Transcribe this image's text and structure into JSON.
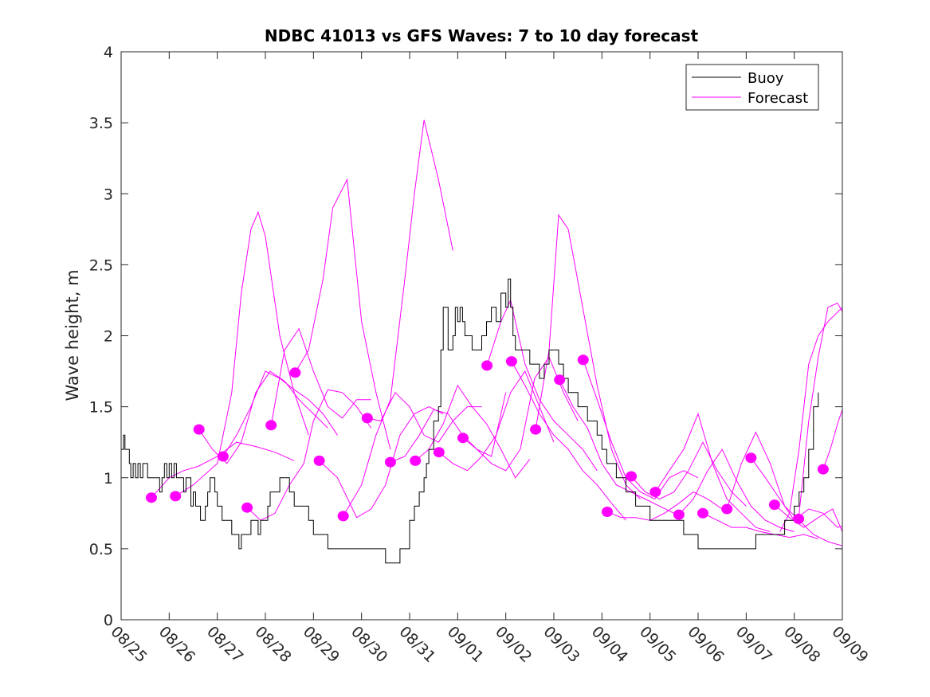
{
  "chart_data": {
    "type": "line",
    "title": "NDBC 41013 vs GFS Waves: 7 to 10 day forecast",
    "xlabel": "",
    "ylabel": "Wave height, m",
    "x_unit": "days since 08/25",
    "xlim": [
      0,
      15
    ],
    "ylim": [
      0,
      4
    ],
    "x_ticks": [
      0,
      1,
      2,
      3,
      4,
      5,
      6,
      7,
      8,
      9,
      10,
      11,
      12,
      13,
      14,
      15
    ],
    "x_tick_labels": [
      "08/25",
      "08/26",
      "08/27",
      "08/28",
      "08/29",
      "08/30",
      "08/31",
      "09/01",
      "09/02",
      "09/03",
      "09/04",
      "09/05",
      "09/06",
      "09/07",
      "09/08",
      "09/09"
    ],
    "y_ticks": [
      0,
      0.5,
      1,
      1.5,
      2,
      2.5,
      3,
      3.5,
      4
    ],
    "y_tick_labels": [
      "0",
      "0.5",
      "1",
      "1.5",
      "2",
      "2.5",
      "3",
      "3.5",
      "4"
    ],
    "grid": false,
    "legend": {
      "placement": "top-right",
      "entries": [
        {
          "label": "Buoy",
          "color": "#000000"
        },
        {
          "label": "Forecast",
          "color": "#ff00ff"
        }
      ]
    },
    "colors": {
      "buoy": "#000000",
      "forecast": "#ff00ff"
    },
    "buoy": {
      "name": "Buoy",
      "x": [
        0,
        0.05,
        0.08,
        0.12,
        0.17,
        0.2,
        0.25,
        0.3,
        0.35,
        0.4,
        0.45,
        0.5,
        0.55,
        0.6,
        0.65,
        0.7,
        0.75,
        0.8,
        0.85,
        0.9,
        0.95,
        1.0,
        1.05,
        1.1,
        1.15,
        1.2,
        1.25,
        1.3,
        1.35,
        1.4,
        1.45,
        1.5,
        1.55,
        1.6,
        1.65,
        1.7,
        1.75,
        1.8,
        1.85,
        1.9,
        1.95,
        2.0,
        2.1,
        2.2,
        2.3,
        2.4,
        2.45,
        2.5,
        2.55,
        2.6,
        2.7,
        2.8,
        2.85,
        2.9,
        3.0,
        3.05,
        3.1,
        3.15,
        3.2,
        3.3,
        3.4,
        3.5,
        3.6,
        3.7,
        3.8,
        3.9,
        4.0,
        4.05,
        4.1,
        4.15,
        4.2,
        4.3,
        4.4,
        4.5,
        4.6,
        4.7,
        5.0,
        5.2,
        5.5,
        5.8,
        6.0,
        6.1,
        6.15,
        6.2,
        6.25,
        6.3,
        6.35,
        6.4,
        6.5,
        6.6,
        6.65,
        6.7,
        6.8,
        6.9,
        6.95,
        7.0,
        7.05,
        7.1,
        7.15,
        7.2,
        7.3,
        7.4,
        7.5,
        7.6,
        7.7,
        7.8,
        7.9,
        8.0,
        8.05,
        8.1,
        8.15,
        8.2,
        8.3,
        8.4,
        8.5,
        8.6,
        8.7,
        8.8,
        8.9,
        9.0,
        9.1,
        9.2,
        9.3,
        9.4,
        9.5,
        9.6,
        9.7,
        9.8,
        9.9,
        10.0,
        10.1,
        10.2,
        10.3,
        10.4,
        10.5,
        10.6,
        10.7,
        10.8,
        10.9,
        11.0,
        11.2,
        11.4,
        11.6,
        11.7,
        11.8,
        11.9,
        12.0,
        12.2,
        12.4,
        12.6,
        12.8,
        13.0,
        13.2,
        13.4,
        13.6,
        13.8,
        13.9,
        14.0,
        14.1,
        14.2,
        14.3,
        14.4,
        14.5
      ],
      "y": [
        1.2,
        1.3,
        1.2,
        1.2,
        1.1,
        1.0,
        1.1,
        1.0,
        1.1,
        1.0,
        1.1,
        1.1,
        1.0,
        1.0,
        1.0,
        1.0,
        1.0,
        0.9,
        1.0,
        1.1,
        1.0,
        1.1,
        1.0,
        1.1,
        1.0,
        1.0,
        1.0,
        0.9,
        1.0,
        1.0,
        0.8,
        0.9,
        0.8,
        0.8,
        0.7,
        0.7,
        0.8,
        0.9,
        1.0,
        1.0,
        0.9,
        0.8,
        0.7,
        0.7,
        0.6,
        0.6,
        0.5,
        0.6,
        0.6,
        0.6,
        0.7,
        0.7,
        0.6,
        0.7,
        0.7,
        0.8,
        0.9,
        0.9,
        0.9,
        1.0,
        1.0,
        0.9,
        0.8,
        0.8,
        0.8,
        0.7,
        0.6,
        0.6,
        0.6,
        0.6,
        0.6,
        0.5,
        0.5,
        0.5,
        0.5,
        0.5,
        0.5,
        0.5,
        0.4,
        0.5,
        0.7,
        0.8,
        0.8,
        0.9,
        0.9,
        1.0,
        1.1,
        1.2,
        1.4,
        1.5,
        1.9,
        2.2,
        1.9,
        2.0,
        2.2,
        2.1,
        2.2,
        2.1,
        2.0,
        2.0,
        1.9,
        1.9,
        2.0,
        2.1,
        2.2,
        2.1,
        2.3,
        2.2,
        2.4,
        2.2,
        2.0,
        1.9,
        1.9,
        1.9,
        1.8,
        1.8,
        1.7,
        1.8,
        1.9,
        1.9,
        1.8,
        1.7,
        1.6,
        1.6,
        1.5,
        1.5,
        1.4,
        1.4,
        1.3,
        1.2,
        1.1,
        1.1,
        1.0,
        1.0,
        0.9,
        0.9,
        0.8,
        0.8,
        0.8,
        0.7,
        0.7,
        0.7,
        0.7,
        0.6,
        0.6,
        0.6,
        0.5,
        0.5,
        0.5,
        0.5,
        0.5,
        0.5,
        0.6,
        0.6,
        0.6,
        0.7,
        0.7,
        0.8,
        0.9,
        1.0,
        1.2,
        1.5,
        1.6
      ]
    },
    "forecast_start_markers": {
      "name": "Forecast start",
      "x": [
        0.63,
        1.13,
        1.62,
        2.12,
        2.62,
        3.12,
        3.62,
        4.12,
        4.62,
        5.12,
        5.6,
        6.12,
        6.61,
        7.11,
        7.61,
        8.12,
        8.62,
        9.12,
        9.61,
        10.11,
        10.61,
        11.11,
        11.6,
        12.1,
        12.6,
        13.1,
        13.59,
        14.09,
        14.6
      ],
      "y": [
        0.86,
        0.87,
        1.34,
        1.15,
        0.79,
        1.37,
        1.74,
        1.12,
        0.73,
        1.42,
        1.11,
        1.12,
        1.18,
        1.28,
        1.79,
        1.82,
        1.34,
        1.69,
        1.83,
        0.76,
        1.01,
        0.9,
        0.74,
        0.75,
        0.78,
        1.14,
        0.81,
        0.71,
        1.06
      ]
    },
    "forecasts": [
      {
        "name": "Forecast",
        "x": [
          0.63,
          1.0,
          1.3,
          1.6,
          2.0,
          2.4,
          2.8,
          3.2,
          3.6
        ],
        "y": [
          0.86,
          1.0,
          1.05,
          1.08,
          1.15,
          1.25,
          1.22,
          1.18,
          1.12
        ]
      },
      {
        "name": "Forecast",
        "x": [
          1.13,
          1.5,
          2.0,
          2.3,
          2.5,
          2.7,
          2.85,
          3.0,
          3.3,
          3.6,
          3.9
        ],
        "y": [
          0.87,
          0.95,
          1.1,
          1.6,
          2.3,
          2.75,
          2.87,
          2.7,
          2.0,
          1.6,
          1.3
        ]
      },
      {
        "name": "Forecast",
        "x": [
          1.62,
          1.9,
          2.2,
          2.5,
          2.8,
          3.1,
          3.4,
          3.7,
          4.0,
          4.3
        ],
        "y": [
          1.34,
          1.2,
          1.1,
          1.25,
          1.6,
          1.75,
          1.68,
          1.55,
          1.45,
          1.35
        ]
      },
      {
        "name": "Forecast",
        "x": [
          2.12,
          2.4,
          2.7,
          3.0,
          3.3,
          3.6,
          3.9,
          4.2,
          4.5
        ],
        "y": [
          1.15,
          1.3,
          1.5,
          1.75,
          1.7,
          1.62,
          1.55,
          1.45,
          1.3
        ]
      },
      {
        "name": "Forecast",
        "x": [
          2.62,
          2.9,
          3.2,
          3.5,
          3.8,
          4.0,
          4.3,
          4.6,
          4.9,
          5.2
        ],
        "y": [
          0.79,
          0.7,
          0.75,
          0.95,
          1.1,
          1.4,
          1.62,
          1.6,
          1.5,
          1.35
        ]
      },
      {
        "name": "Forecast",
        "x": [
          3.12,
          3.4,
          3.7,
          4.0,
          4.3,
          4.6,
          4.9,
          5.2
        ],
        "y": [
          1.37,
          1.9,
          2.05,
          1.75,
          1.5,
          1.42,
          1.55,
          1.55
        ]
      },
      {
        "name": "Forecast",
        "x": [
          3.62,
          3.9,
          4.2,
          4.4,
          4.7,
          5.0,
          5.3,
          5.6
        ],
        "y": [
          1.74,
          1.9,
          2.4,
          2.9,
          3.1,
          2.1,
          1.6,
          1.2
        ]
      },
      {
        "name": "Forecast",
        "x": [
          4.12,
          4.5,
          4.9,
          5.2,
          5.5,
          5.8,
          6.1,
          6.4,
          6.7
        ],
        "y": [
          1.12,
          1.0,
          0.72,
          0.78,
          0.95,
          1.3,
          1.45,
          1.5,
          1.45
        ]
      },
      {
        "name": "Forecast",
        "x": [
          4.62,
          5.0,
          5.3,
          5.6,
          5.9,
          6.1,
          6.3,
          6.6,
          6.9
        ],
        "y": [
          0.73,
          0.95,
          1.3,
          1.55,
          2.4,
          3.0,
          3.52,
          3.1,
          2.6
        ]
      },
      {
        "name": "Forecast",
        "x": [
          5.12,
          5.4,
          5.7,
          6.0,
          6.3,
          6.6,
          6.9,
          7.2,
          7.5
        ],
        "y": [
          1.42,
          1.4,
          1.6,
          1.5,
          1.3,
          1.25,
          1.4,
          1.5,
          1.5
        ]
      },
      {
        "name": "Forecast",
        "x": [
          5.6,
          5.9,
          6.2,
          6.5,
          6.8,
          7.1,
          7.4,
          7.7,
          8.0
        ],
        "y": [
          1.11,
          1.15,
          1.3,
          1.48,
          1.45,
          1.3,
          1.2,
          1.15,
          1.6
        ]
      },
      {
        "name": "Forecast",
        "x": [
          6.12,
          6.4,
          6.7,
          7.0,
          7.3,
          7.6,
          7.9,
          8.2,
          8.5
        ],
        "y": [
          1.12,
          1.2,
          1.38,
          1.65,
          1.5,
          1.38,
          1.2,
          1.0,
          1.13
        ]
      },
      {
        "name": "Forecast",
        "x": [
          6.61,
          6.9,
          7.2,
          7.5,
          7.8,
          8.1,
          8.4,
          8.7,
          9.0
        ],
        "y": [
          1.18,
          1.1,
          1.05,
          1.15,
          1.3,
          1.6,
          1.75,
          1.5,
          1.25
        ]
      },
      {
        "name": "Forecast",
        "x": [
          7.11,
          7.4,
          7.7,
          8.0,
          8.3,
          8.6,
          8.9,
          9.2,
          9.5
        ],
        "y": [
          1.28,
          1.2,
          1.1,
          1.05,
          1.2,
          1.7,
          1.85,
          1.6,
          1.4
        ]
      },
      {
        "name": "Forecast",
        "x": [
          7.61,
          7.9,
          8.1,
          8.4,
          8.7,
          9.0,
          9.3,
          9.6,
          9.9
        ],
        "y": [
          1.79,
          2.1,
          2.25,
          1.8,
          1.55,
          1.4,
          1.3,
          1.2,
          1.05
        ]
      },
      {
        "name": "Forecast",
        "x": [
          8.12,
          8.4,
          8.7,
          9.0,
          9.3,
          9.6,
          9.9,
          10.2,
          10.5
        ],
        "y": [
          1.82,
          1.65,
          1.45,
          1.3,
          1.2,
          1.05,
          0.95,
          0.82,
          0.7
        ]
      },
      {
        "name": "Forecast",
        "x": [
          8.62,
          8.9,
          9.1,
          9.3,
          9.6,
          9.9,
          10.2,
          10.5,
          10.8
        ],
        "y": [
          1.34,
          1.9,
          2.85,
          2.75,
          2.2,
          1.65,
          1.2,
          0.95,
          0.85
        ]
      },
      {
        "name": "Forecast",
        "x": [
          9.12,
          9.4,
          9.7,
          10.0,
          10.3,
          10.6,
          10.9,
          11.2,
          11.5
        ],
        "y": [
          1.69,
          1.5,
          1.35,
          1.1,
          0.95,
          0.9,
          0.85,
          0.8,
          0.75
        ]
      },
      {
        "name": "Forecast",
        "x": [
          9.61,
          9.9,
          10.2,
          10.5,
          10.8,
          11.1,
          11.4,
          11.7,
          12.0
        ],
        "y": [
          1.83,
          1.55,
          1.25,
          1.0,
          0.9,
          0.85,
          1.0,
          1.05,
          1.0
        ]
      },
      {
        "name": "Forecast",
        "x": [
          10.11,
          10.4,
          10.7,
          11.0,
          11.3,
          11.6,
          11.9,
          12.2,
          12.5
        ],
        "y": [
          0.76,
          0.72,
          0.72,
          0.7,
          0.75,
          0.82,
          0.9,
          0.85,
          0.78
        ]
      },
      {
        "name": "Forecast",
        "x": [
          10.61,
          10.9,
          11.2,
          11.5,
          11.8,
          12.1,
          12.4,
          12.7,
          13.0
        ],
        "y": [
          1.01,
          0.9,
          0.85,
          0.9,
          1.05,
          1.25,
          1.05,
          0.9,
          0.8
        ]
      },
      {
        "name": "Forecast",
        "x": [
          11.11,
          11.4,
          11.7,
          12.0,
          12.3,
          12.6,
          12.9,
          13.2,
          13.5
        ],
        "y": [
          0.9,
          1.05,
          1.2,
          1.45,
          1.1,
          0.85,
          0.75,
          0.65,
          0.62
        ]
      },
      {
        "name": "Forecast",
        "x": [
          11.6,
          11.9,
          12.2,
          12.5,
          12.8,
          13.1,
          13.4,
          13.7,
          14.0
        ],
        "y": [
          0.74,
          0.85,
          1.05,
          1.2,
          0.98,
          0.8,
          0.7,
          0.65,
          0.62
        ]
      },
      {
        "name": "Forecast",
        "x": [
          12.1,
          12.4,
          12.7,
          13.0,
          13.3,
          13.6,
          13.9,
          14.2,
          14.5
        ],
        "y": [
          0.75,
          0.7,
          0.65,
          0.65,
          0.62,
          0.6,
          0.58,
          0.6,
          0.57
        ]
      },
      {
        "name": "Forecast",
        "x": [
          12.6,
          12.9,
          13.2,
          13.5,
          13.8,
          14.1,
          14.4,
          14.7,
          15.0
        ],
        "y": [
          0.78,
          1.1,
          1.32,
          1.1,
          0.8,
          0.7,
          0.6,
          0.55,
          0.52
        ]
      },
      {
        "name": "Forecast",
        "x": [
          13.1,
          13.4,
          13.7,
          14.0,
          14.3,
          14.6,
          14.9,
          15.0
        ],
        "y": [
          1.14,
          1.0,
          0.85,
          0.7,
          0.78,
          0.75,
          0.65,
          0.66
        ]
      },
      {
        "name": "Forecast",
        "x": [
          13.59,
          13.9,
          14.2,
          14.5,
          14.8,
          15.0
        ],
        "y": [
          0.81,
          0.72,
          0.65,
          0.72,
          0.78,
          0.62
        ]
      },
      {
        "name": "Forecast",
        "x": [
          14.09,
          14.3,
          14.5,
          14.7,
          14.9,
          15.0
        ],
        "y": [
          0.71,
          1.4,
          1.85,
          2.2,
          2.23,
          2.17
        ]
      },
      {
        "name": "Forecast",
        "x": [
          13.7,
          13.9,
          14.1,
          14.3,
          14.5,
          14.7,
          15.0
        ],
        "y": [
          0.62,
          0.75,
          1.2,
          1.8,
          2.0,
          2.1,
          2.2
        ]
      },
      {
        "name": "Forecast",
        "x": [
          14.6,
          14.75,
          14.9,
          15.0
        ],
        "y": [
          1.06,
          1.2,
          1.38,
          1.48
        ]
      }
    ]
  }
}
